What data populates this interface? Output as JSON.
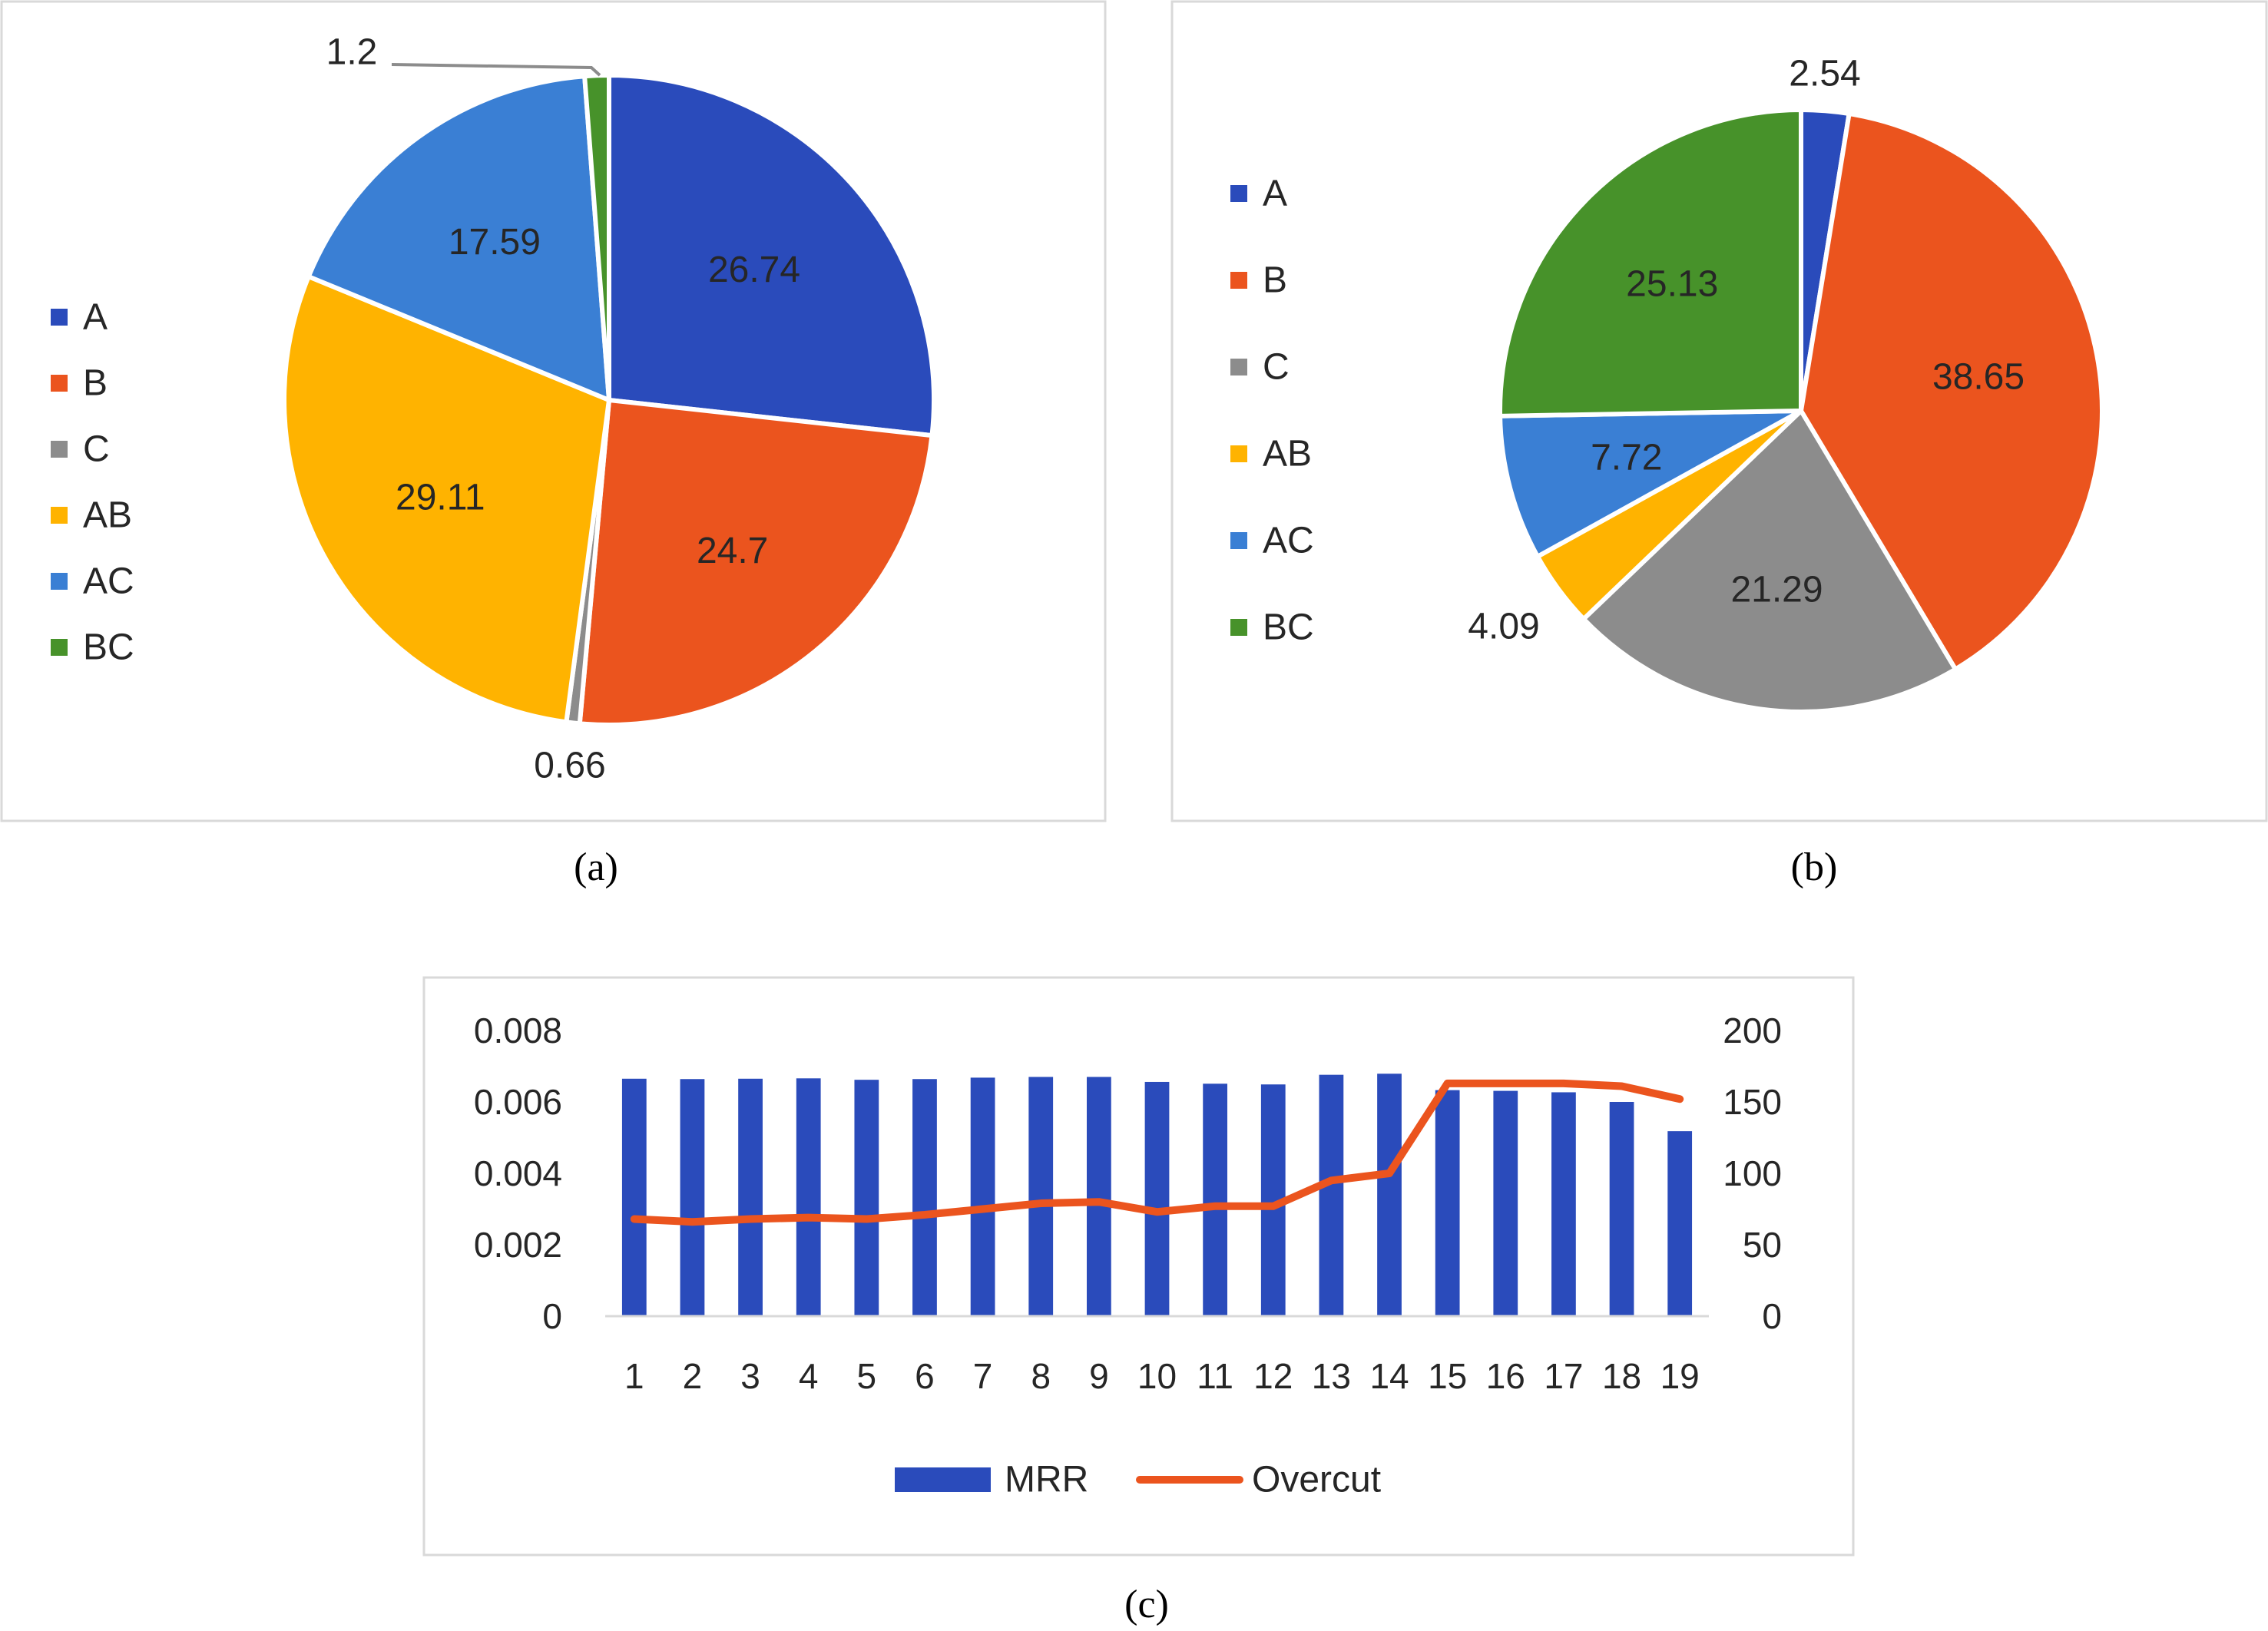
{
  "figure": {
    "panel_a_caption": "(a)",
    "panel_b_caption": "(b)",
    "panel_c_caption": "(c)"
  },
  "chart_data": [
    {
      "type": "pie",
      "panel": "a",
      "legend_position": "left",
      "categories": [
        "A",
        "B",
        "C",
        "AB",
        "AC",
        "BC"
      ],
      "values": [
        26.74,
        24.7,
        0.66,
        29.11,
        17.59,
        1.2
      ],
      "value_labels": [
        "26.74",
        "24.7",
        "0.66",
        "29.11",
        "17.59",
        "1.2"
      ],
      "colors": [
        "#2a4bbb",
        "#eb541e",
        "#8c8c8c",
        "#ffb300",
        "#3a7fd4",
        "#47922a"
      ]
    },
    {
      "type": "pie",
      "panel": "b",
      "legend_position": "left",
      "categories": [
        "A",
        "B",
        "C",
        "AB",
        "AC",
        "BC"
      ],
      "values": [
        2.54,
        38.65,
        21.29,
        4.09,
        7.72,
        25.13
      ],
      "value_labels": [
        "2.54",
        "38.65",
        "21.29",
        "4.09",
        "7.72",
        "25.13"
      ],
      "colors": [
        "#2a4bbb",
        "#eb541e",
        "#8c8c8c",
        "#ffb300",
        "#3a7fd4",
        "#47922a"
      ]
    },
    {
      "type": "bar+line",
      "panel": "c",
      "legend_position": "bottom",
      "categories": [
        "1",
        "2",
        "3",
        "4",
        "5",
        "6",
        "7",
        "8",
        "9",
        "10",
        "11",
        "12",
        "13",
        "14",
        "15",
        "16",
        "17",
        "18",
        "19"
      ],
      "series": [
        {
          "name": "MRR",
          "type": "bar",
          "axis": "left",
          "color": "#2a4bbb",
          "values": [
            0.00665,
            0.00664,
            0.00665,
            0.00666,
            0.00662,
            0.00664,
            0.00668,
            0.0067,
            0.0067,
            0.00656,
            0.00651,
            0.00649,
            0.00676,
            0.00679,
            0.00633,
            0.00631,
            0.00627,
            0.006,
            0.00518
          ]
        },
        {
          "name": "Overcut",
          "type": "line",
          "axis": "right",
          "color": "#eb541e",
          "values": [
            68,
            66,
            68,
            69,
            68,
            71,
            75,
            79,
            80,
            73,
            77,
            77,
            95,
            100,
            163,
            163,
            163,
            161,
            152
          ]
        }
      ],
      "y_left": {
        "ylim": [
          0,
          0.008
        ],
        "ticks": [
          "0",
          "0.002",
          "0.004",
          "0.006",
          "0.008"
        ]
      },
      "y_right": {
        "ylim": [
          0,
          200
        ],
        "ticks": [
          "0",
          "50",
          "100",
          "150",
          "200"
        ]
      },
      "grid": false
    }
  ]
}
